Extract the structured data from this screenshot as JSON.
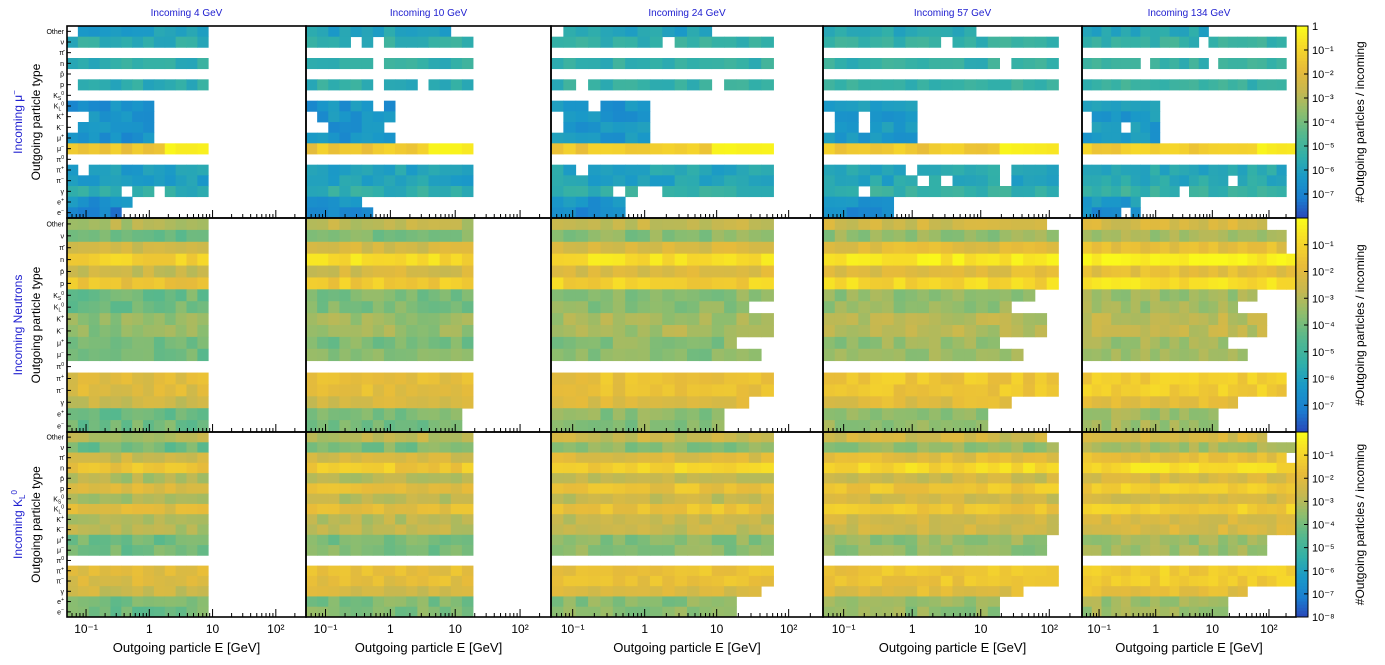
{
  "figure": {
    "column_titles": [
      "Incoming 4 GeV",
      "Incoming 10 GeV",
      "Incoming 24 GeV",
      "Incoming 57 GeV",
      "Incoming 134 GeV"
    ],
    "row_titles": [
      {
        "main": "Incoming μ",
        "sup": "−"
      },
      {
        "main": "Incoming Neutrons",
        "sup": ""
      },
      {
        "main": "Incoming K",
        "sub": "L",
        "sup": "0"
      }
    ],
    "y_axis_title": "Outgoing particle type",
    "x_axis_title": "Outgoing particle E [GeV]",
    "colorbar_title": "#Outgoing particles / incoming",
    "colors": {
      "title_blue": "#2020d0",
      "frame": "#000000",
      "background": "#ffffff"
    },
    "palette": [
      "#2b43b8",
      "#1a7ed0",
      "#1a99c8",
      "#32b0a8",
      "#55b88e",
      "#8cbd6f",
      "#c6b850",
      "#e7bb3a",
      "#f6d62b",
      "#fafa1a"
    ]
  },
  "chart_data": {
    "type": "heatmap",
    "x_scale": "log",
    "x_range_gev": [
      0.05,
      300
    ],
    "x_tick_labels": [
      "10⁻¹",
      "1",
      "10",
      "10²"
    ],
    "x_ticks": [
      0.1,
      1,
      10,
      100
    ],
    "y_categories": [
      "Other",
      "ν",
      "π̄",
      "n",
      "p̄",
      "p",
      "K⁰S",
      "K⁰L",
      "K⁺",
      "K⁻",
      "μ⁺",
      "μ⁻",
      "π⁰",
      "π⁺",
      "π⁻",
      "γ",
      "e⁺",
      "e⁻"
    ],
    "y_labels": [
      {
        "t": "Other"
      },
      {
        "t": "ν"
      },
      {
        "t": "π̄"
      },
      {
        "t": "n"
      },
      {
        "t": "p̄"
      },
      {
        "t": "p"
      },
      {
        "t": "K",
        "sup": "0",
        "sub": "S"
      },
      {
        "t": "K",
        "sup": "0",
        "sub": "L"
      },
      {
        "t": "K",
        "sup": "+"
      },
      {
        "t": "K",
        "sup": "−"
      },
      {
        "t": "μ",
        "sup": "+"
      },
      {
        "t": "μ",
        "sup": "−"
      },
      {
        "t": "π",
        "sup": "0"
      },
      {
        "t": "π",
        "sup": "+"
      },
      {
        "t": "π",
        "sup": "−"
      },
      {
        "t": "γ"
      },
      {
        "t": "e",
        "sup": "+"
      },
      {
        "t": "e",
        "sup": "−"
      }
    ],
    "incoming_energies_gev": [
      4,
      10,
      24,
      57,
      134
    ],
    "colorbars": [
      {
        "scale": "log",
        "range": [
          1e-08,
          1
        ],
        "tick_labels": [
          "1",
          "10⁻¹",
          "10⁻²",
          "10⁻³",
          "10⁻⁴",
          "10⁻⁵",
          "10⁻⁶",
          "10⁻⁷"
        ],
        "ticks": [
          0,
          -1,
          -2,
          -3,
          -4,
          -5,
          -6,
          -7
        ]
      },
      {
        "scale": "log",
        "range": [
          1e-08,
          1
        ],
        "tick_labels": [
          "10⁻¹",
          "10⁻²",
          "10⁻³",
          "10⁻⁴",
          "10⁻⁵",
          "10⁻⁶",
          "10⁻⁷"
        ],
        "ticks": [
          -1,
          -2,
          -3,
          -4,
          -5,
          -6,
          -7
        ]
      },
      {
        "scale": "log",
        "range": [
          1e-08,
          1
        ],
        "tick_labels": [
          "10⁻¹",
          "10⁻²",
          "10⁻³",
          "10⁻⁴",
          "10⁻⁵",
          "10⁻⁶",
          "10⁻⁷",
          "10⁻⁸"
        ],
        "ticks": [
          -1,
          -2,
          -3,
          -4,
          -5,
          -6,
          -7,
          -8
        ]
      }
    ],
    "rows": [
      {
        "incoming": "μ⁻",
        "base": [
          -6,
          -5.5,
          -7,
          -5.5,
          -7,
          -5.5,
          -7,
          -6.5,
          -6.5,
          -6.5,
          -6.5,
          -1.5,
          -7,
          -6,
          -6,
          -5.5,
          -6.5,
          -7
        ],
        "wmax": [
          8,
          200,
          0.6,
          200,
          0.6,
          200,
          0.6,
          1.2,
          1.2,
          1.2,
          1.2,
          300,
          0.6,
          220,
          220,
          200,
          0.5,
          0.5
        ],
        "wmin": [
          0.06,
          0.06,
          0.5,
          0.06,
          0.5,
          0.06,
          0.5,
          0.05,
          0.07,
          0.07,
          0.05,
          0.05,
          0.5,
          0.05,
          0.05,
          0.05,
          0.05,
          0.05
        ],
        "slope": 0.2
      },
      {
        "incoming": "n",
        "base": [
          -3,
          -4,
          -2.5,
          -1,
          -2.5,
          -1.5,
          -4,
          -4,
          -3.5,
          -3.5,
          -4,
          -4,
          -6,
          -2,
          -2,
          -2.5,
          -4,
          -4
        ],
        "wmax": [
          80,
          200,
          200,
          300,
          300,
          300,
          60,
          30,
          100,
          80,
          20,
          50,
          0.5,
          200,
          200,
          30,
          15,
          15
        ],
        "wmin": [
          0.05,
          0.05,
          0.05,
          0.05,
          0.05,
          0.05,
          0.05,
          0.05,
          0.05,
          0.05,
          0.05,
          0.05,
          0.5,
          0.05,
          0.05,
          0.05,
          0.05,
          0.05
        ],
        "slope": 0.5
      },
      {
        "incoming": "K⁰L",
        "base": [
          -3,
          -4,
          -2.5,
          -1.5,
          -3,
          -2,
          -3,
          -2,
          -3,
          -3,
          -4,
          -4,
          -6,
          -2,
          -2,
          -2.5,
          -4,
          -4
        ],
        "wmax": [
          80,
          250,
          200,
          300,
          250,
          300,
          300,
          300,
          250,
          250,
          100,
          100,
          0.5,
          250,
          250,
          50,
          20,
          20
        ],
        "wmin": [
          0.05,
          0.05,
          0.05,
          0.05,
          0.05,
          0.05,
          0.05,
          0.05,
          0.05,
          0.05,
          0.05,
          0.05,
          0.5,
          0.05,
          0.05,
          0.05,
          0.05,
          0.05
        ],
        "slope": 0.5
      }
    ]
  }
}
